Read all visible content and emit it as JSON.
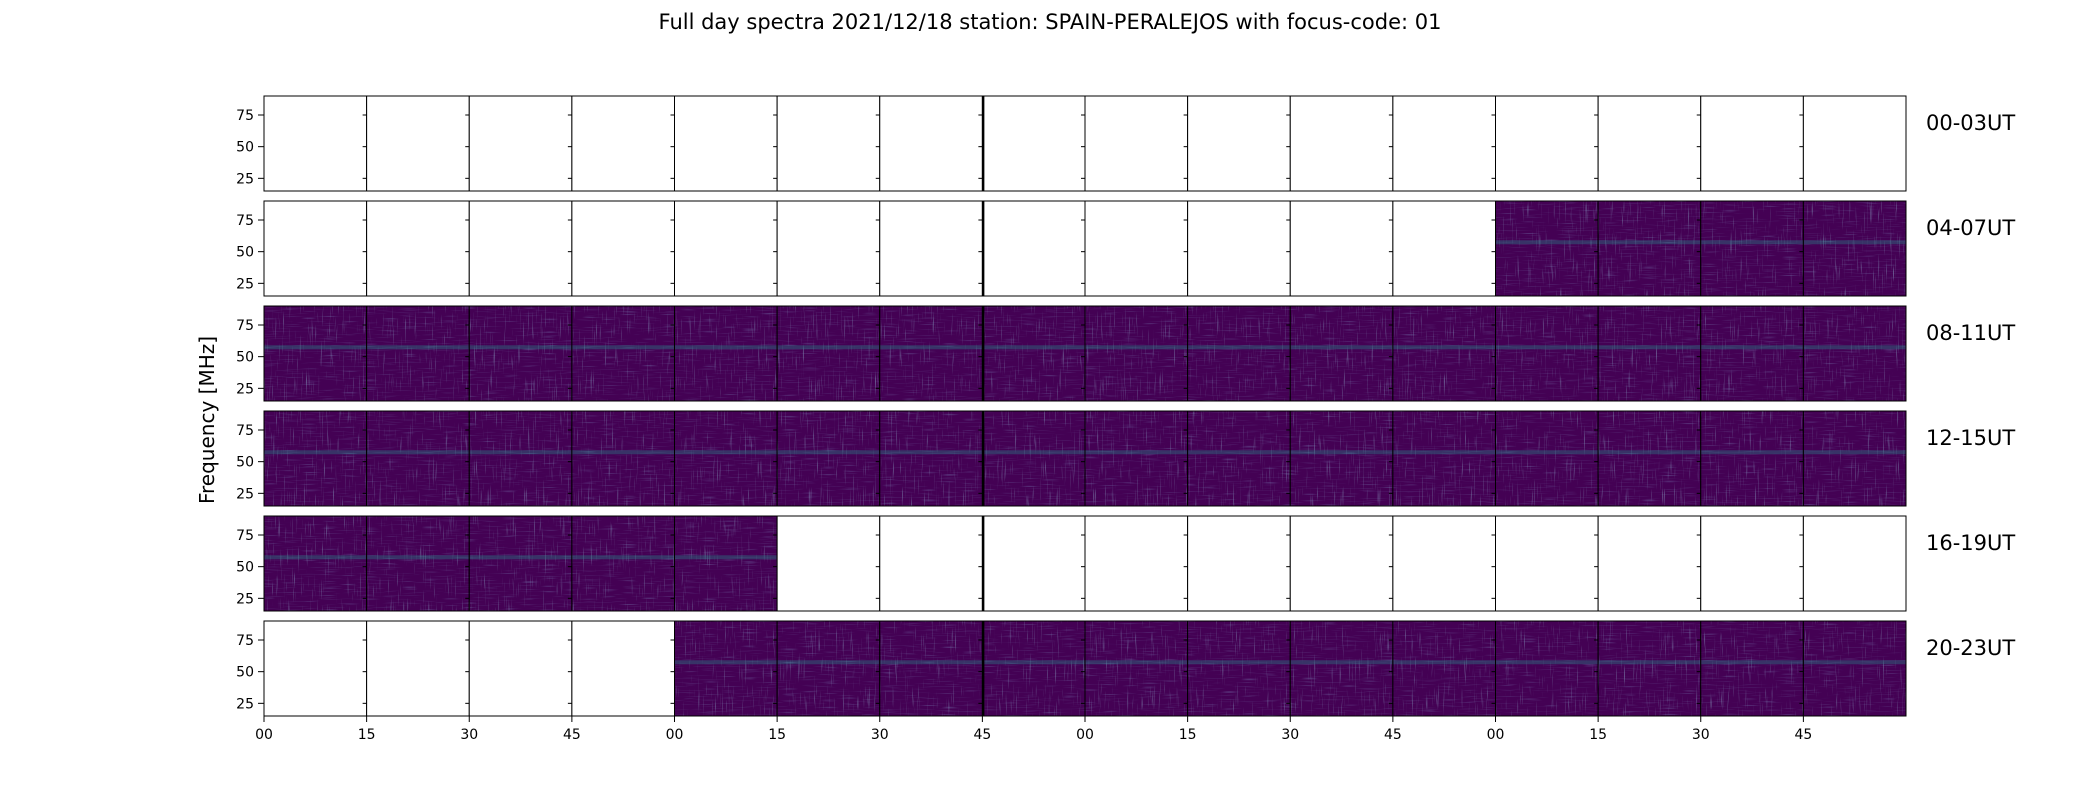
{
  "figure": {
    "title": "Full day spectra 2021/12/18 station: SPAIN-PERALEJOS with focus-code: 01"
  },
  "chart_data": {
    "type": "heatmap",
    "title": "Full day spectra 2021/12/18 station: SPAIN-PERALEJOS with focus-code: 01",
    "ylabel": "Frequency [MHz]",
    "xlabel": "",
    "y_range": [
      15,
      90
    ],
    "y_ticks": [
      25,
      50,
      75
    ],
    "x_tick_labels": [
      "00",
      "15",
      "30",
      "45",
      "00",
      "15",
      "30",
      "45",
      "00",
      "15",
      "30",
      "45",
      "00",
      "15",
      "30",
      "45"
    ],
    "panel_minutes": 15,
    "colormap": [
      "#440154",
      "#3b528b",
      "#21918c",
      "#5ec962",
      "#fde725"
    ],
    "rows": [
      {
        "label": "00-03UT",
        "has_data": [
          0,
          0,
          0,
          0,
          0,
          0,
          0,
          0,
          0,
          0,
          0,
          0,
          0,
          0,
          0,
          0
        ]
      },
      {
        "label": "04-07UT",
        "has_data": [
          0,
          0,
          0,
          0,
          0,
          0,
          0,
          0,
          0,
          0,
          0,
          0,
          1,
          1,
          1,
          1
        ]
      },
      {
        "label": "08-11UT",
        "has_data": [
          1,
          1,
          1,
          1,
          1,
          1,
          1,
          1,
          1,
          1,
          1,
          1,
          1,
          1,
          1,
          1
        ]
      },
      {
        "label": "12-15UT",
        "has_data": [
          1,
          1,
          1,
          1,
          1,
          1,
          1,
          1,
          1,
          1,
          1,
          1,
          1,
          1,
          1,
          1
        ]
      },
      {
        "label": "16-19UT",
        "has_data": [
          1,
          1,
          1,
          1,
          1,
          0,
          0,
          0,
          0,
          0,
          0,
          0,
          0,
          0,
          0,
          0
        ]
      },
      {
        "label": "20-23UT",
        "has_data": [
          0,
          0,
          0,
          0,
          1,
          1,
          1,
          1,
          1,
          1,
          1,
          1,
          1,
          1,
          1,
          1
        ]
      }
    ]
  }
}
